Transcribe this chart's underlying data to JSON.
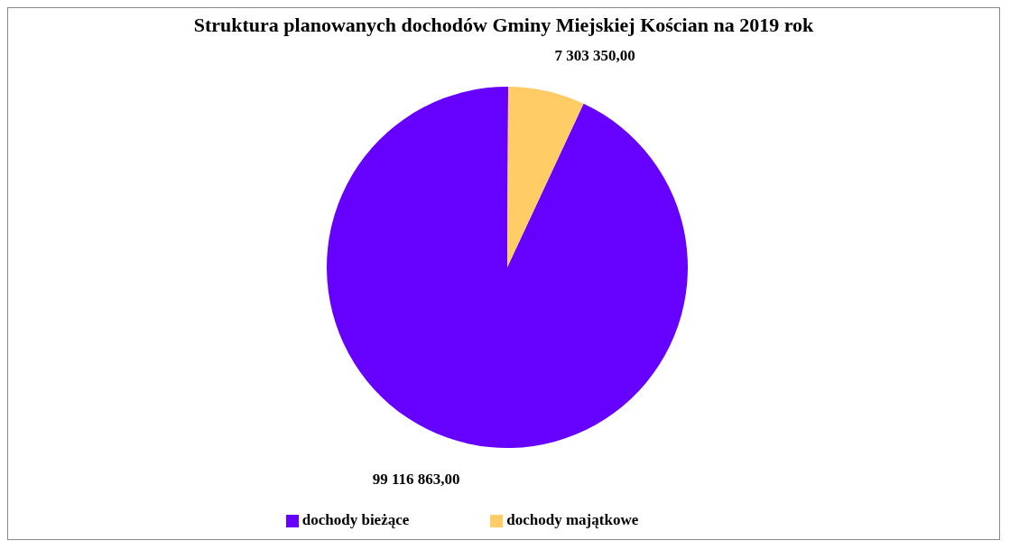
{
  "chart_data": {
    "type": "pie",
    "title": "Struktura planowanych dochodów Gminy Miejskiej Kościan na 2019 rok",
    "categories": [
      "dochody bieżące",
      "dochody majątkowe"
    ],
    "values": [
      99116863.0,
      7303350.0
    ],
    "colors": [
      "#6600ff",
      "#ffcc66"
    ],
    "value_labels": [
      "99 116 863,00",
      "7 303 350,00"
    ],
    "legend": "bottom"
  }
}
